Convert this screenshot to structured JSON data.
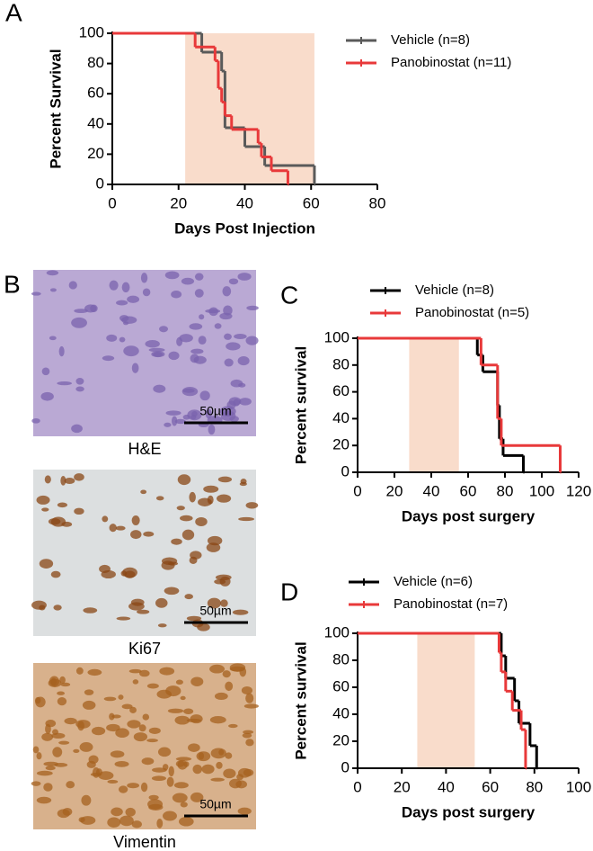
{
  "panel_labels": [
    "A",
    "B",
    "C",
    "D"
  ],
  "images": [
    {
      "caption": "H&E",
      "scale_bar": "50µm"
    },
    {
      "caption": "Ki67",
      "scale_bar": "50µm"
    },
    {
      "caption": "Vimentin",
      "scale_bar": "50µm"
    }
  ],
  "chart_data": [
    {
      "type": "step",
      "xlabel": "Days Post Injection",
      "ylabel": "Percent Survival",
      "xlim": [
        0,
        80
      ],
      "xticks": [
        0,
        20,
        40,
        60,
        80
      ],
      "ylim": [
        0,
        100
      ],
      "yticks": [
        0,
        20,
        40,
        60,
        80,
        100
      ],
      "shaded_region": [
        22,
        61
      ],
      "shade_color": "#f9dccb",
      "series": [
        {
          "name": "Vehicle (n=8)",
          "color": "#5a5a5a",
          "x": [
            0,
            27,
            33,
            34,
            40,
            46,
            61
          ],
          "values": [
            100,
            87.5,
            75,
            37.5,
            25,
            12.5,
            0
          ]
        },
        {
          "name": "Panobinostat  (n=11)",
          "color": "#e8393a",
          "x": [
            0,
            25,
            31,
            32,
            33,
            34,
            36,
            44,
            45,
            48,
            53
          ],
          "values": [
            100,
            90.9,
            81.8,
            63.6,
            54.5,
            45.5,
            36.4,
            27.3,
            18.2,
            9.1,
            0
          ]
        }
      ]
    },
    {
      "type": "step",
      "xlabel": "Days post surgery",
      "ylabel": "Percent survival",
      "xlim": [
        0,
        120
      ],
      "xticks": [
        0,
        20,
        40,
        60,
        80,
        100,
        120
      ],
      "ylim": [
        0,
        100
      ],
      "yticks": [
        0,
        20,
        40,
        60,
        80,
        100
      ],
      "shaded_region": [
        28,
        55
      ],
      "shade_color": "#f9dccb",
      "series": [
        {
          "name": "Vehicle (n=8)",
          "color": "#000000",
          "x": [
            0,
            65,
            68,
            76,
            77,
            79,
            90
          ],
          "values": [
            100,
            87.5,
            75,
            50,
            25,
            12.5,
            0
          ]
        },
        {
          "name": "Panobinostat (n=5)",
          "color": "#e8393a",
          "x": [
            0,
            67,
            76,
            78,
            110
          ],
          "values": [
            100,
            80,
            40,
            20,
            0
          ]
        }
      ]
    },
    {
      "type": "step",
      "xlabel": "Days post surgery",
      "ylabel": "Percent survival",
      "xlim": [
        0,
        100
      ],
      "xticks": [
        0,
        20,
        40,
        60,
        80,
        100
      ],
      "ylim": [
        0,
        100
      ],
      "yticks": [
        0,
        20,
        40,
        60,
        80,
        100
      ],
      "shaded_region": [
        27,
        53
      ],
      "shade_color": "#f9dccb",
      "series": [
        {
          "name": "Vehicle (n=6)",
          "color": "#000000",
          "x": [
            0,
            65,
            67,
            71,
            73,
            78,
            81
          ],
          "values": [
            100,
            83.3,
            66.7,
            50,
            33.3,
            16.7,
            0
          ]
        },
        {
          "name": "Panobinostat (n=7)",
          "color": "#e8393a",
          "x": [
            0,
            64,
            65,
            67,
            70,
            74,
            76
          ],
          "values": [
            100,
            85.7,
            71.4,
            57.1,
            42.9,
            28.6,
            0
          ]
        }
      ]
    }
  ]
}
